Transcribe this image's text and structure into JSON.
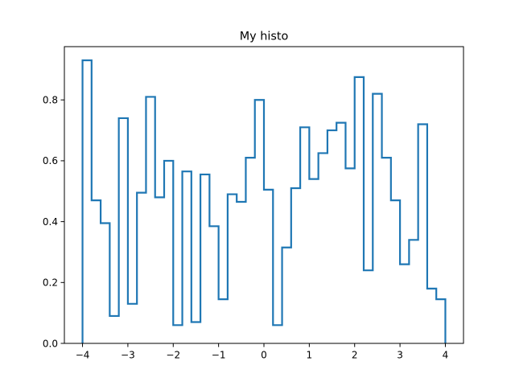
{
  "chart_data": {
    "type": "histogram",
    "title": "My histo",
    "xlabel": "",
    "ylabel": "",
    "histtype": "step",
    "color": "#1f77b4",
    "xlim": [
      -4.4,
      4.4
    ],
    "ylim": [
      0,
      0.975
    ],
    "xticks": [
      -4,
      -3,
      -2,
      -1,
      0,
      1,
      2,
      3,
      4
    ],
    "yticks": [
      0.0,
      0.2,
      0.4,
      0.6,
      0.8
    ],
    "xtick_labels": [
      "−4",
      "−3",
      "−2",
      "−1",
      "0",
      "1",
      "2",
      "3",
      "4"
    ],
    "ytick_labels": [
      "0.0",
      "0.2",
      "0.4",
      "0.6",
      "0.8"
    ],
    "bin_edges": [
      -4.0,
      -3.8,
      -3.6,
      -3.4,
      -3.2,
      -3.0,
      -2.8,
      -2.6,
      -2.4,
      -2.2,
      -2.0,
      -1.8,
      -1.6,
      -1.4,
      -1.2,
      -1.0,
      -0.8,
      -0.6,
      -0.4,
      -0.2,
      0.0,
      0.2,
      0.4,
      0.6,
      0.8,
      1.0,
      1.2,
      1.4,
      1.6,
      1.8,
      2.0,
      2.2,
      2.4,
      2.6,
      2.8,
      3.0,
      3.2,
      3.4,
      3.6,
      3.8,
      4.0
    ],
    "values": [
      0.93,
      0.47,
      0.395,
      0.09,
      0.74,
      0.13,
      0.495,
      0.81,
      0.48,
      0.6,
      0.06,
      0.565,
      0.07,
      0.555,
      0.385,
      0.145,
      0.49,
      0.465,
      0.61,
      0.8,
      0.505,
      0.06,
      0.315,
      0.51,
      0.71,
      0.54,
      0.625,
      0.7,
      0.725,
      0.575,
      0.875,
      0.24,
      0.82,
      0.61,
      0.47,
      0.26,
      0.34,
      0.72,
      0.18,
      0.145
    ]
  }
}
